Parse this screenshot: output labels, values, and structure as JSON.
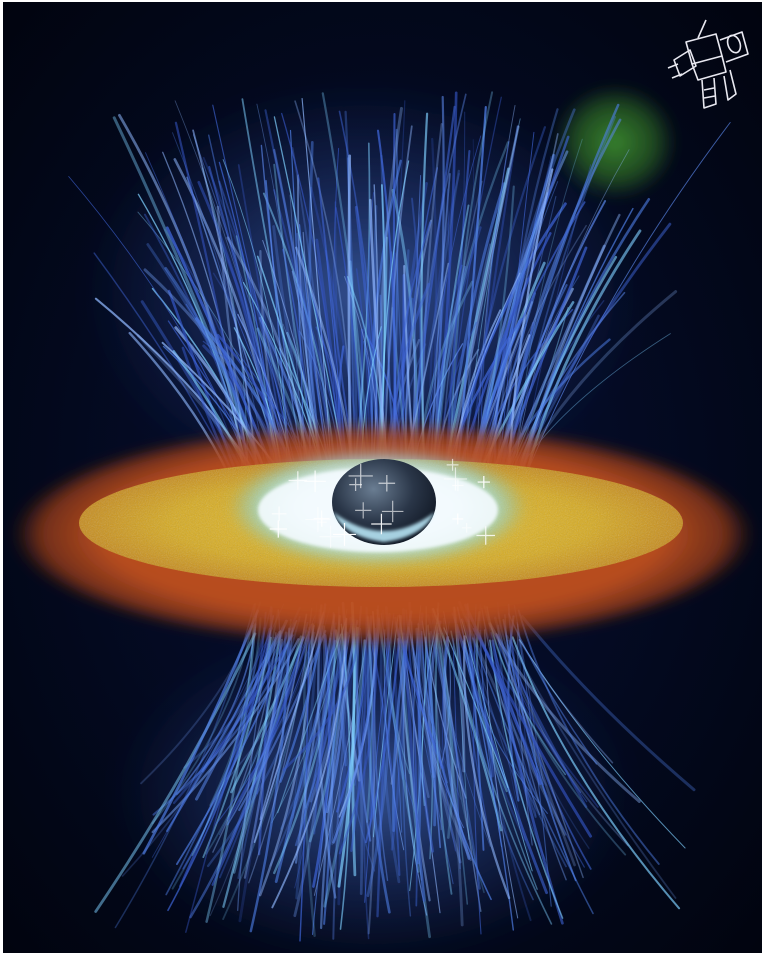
{
  "scene": {
    "subject": "black-hole-accretion-disk-with-outflow",
    "colors": {
      "background": "#02061a",
      "outflow": "#4f7fe6",
      "outflow_glow": "#8fd8ff",
      "inner_disk": "#d9b21e",
      "outer_disk": "#b3481a",
      "core_glow": "#f4fbff",
      "black_hole": "#1e2a3c",
      "green_cloud": "#2d6a24",
      "satellite_sketch": "#e8e8f0"
    },
    "icons": [
      "satellite-sketch-icon"
    ]
  }
}
